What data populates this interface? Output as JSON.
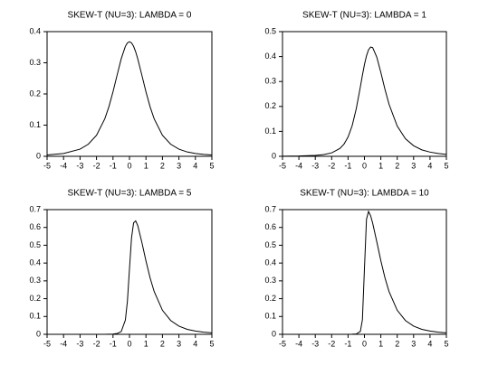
{
  "chart_data": [
    {
      "type": "line",
      "title": "SKEW-T (NU=3): LAMBDA = 0",
      "color": "#000000",
      "x": [
        -5,
        -4,
        -3,
        -2.5,
        -2,
        -1.5,
        -1.25,
        -1,
        -0.75,
        -0.5,
        -0.25,
        -0.125,
        0,
        0.125,
        0.25,
        0.375,
        0.5,
        0.75,
        1,
        1.25,
        1.5,
        2,
        2.5,
        3,
        3.5,
        4,
        4.5,
        5
      ],
      "values": [
        0.0042,
        0.0092,
        0.023,
        0.0387,
        0.0675,
        0.12,
        0.1589,
        0.2068,
        0.2607,
        0.3132,
        0.3528,
        0.3638,
        0.3676,
        0.3638,
        0.3528,
        0.3354,
        0.3132,
        0.2607,
        0.2068,
        0.1589,
        0.12,
        0.0675,
        0.0387,
        0.023,
        0.014,
        0.0092,
        0.0061,
        0.0042
      ],
      "xlim": [
        -5,
        5
      ],
      "xticks": [
        -5,
        -4,
        -3,
        -2,
        -1,
        0,
        1,
        2,
        3,
        4,
        5
      ],
      "ylim": [
        0,
        0.4
      ],
      "yticks": [
        0,
        0.1,
        0.2,
        0.3,
        0.4
      ]
    },
    {
      "type": "line",
      "title": "SKEW-T (NU=3): LAMBDA = 1",
      "color": "#000000",
      "x": [
        -5,
        -4,
        -3,
        -2.5,
        -2,
        -1.5,
        -1.25,
        -1,
        -0.75,
        -0.5,
        -0.25,
        -0.125,
        0,
        0.125,
        0.25,
        0.375,
        0.5,
        0.75,
        1,
        1.25,
        1.5,
        2,
        2.5,
        3,
        3.5,
        4,
        4.5,
        5
      ],
      "values": [
        0.0006,
        0.0013,
        0.0036,
        0.0068,
        0.0138,
        0.0313,
        0.0488,
        0.0773,
        0.1228,
        0.1906,
        0.2784,
        0.3247,
        0.3676,
        0.4029,
        0.4272,
        0.4381,
        0.4358,
        0.3986,
        0.3363,
        0.269,
        0.2087,
        0.1212,
        0.0706,
        0.0424,
        0.0259,
        0.017,
        0.0114,
        0.0079
      ],
      "xlim": [
        -5,
        5
      ],
      "xticks": [
        -5,
        -4,
        -3,
        -2,
        -1,
        0,
        1,
        2,
        3,
        4,
        5
      ],
      "ylim": [
        0,
        0.5
      ],
      "yticks": [
        0,
        0.1,
        0.2,
        0.3,
        0.4,
        0.5
      ]
    },
    {
      "type": "line",
      "title": "SKEW-T (NU=3): LAMBDA = 5",
      "color": "#000000",
      "x": [
        -5,
        -4,
        -3,
        -2.5,
        -2,
        -1.5,
        -1.25,
        -1,
        -0.75,
        -0.5,
        -0.25,
        -0.125,
        0,
        0.125,
        0.25,
        0.375,
        0.5,
        0.75,
        1,
        1.25,
        1.5,
        2,
        2.5,
        3,
        3.5,
        4,
        4.5,
        5
      ],
      "values": [
        0,
        0,
        0,
        0,
        0.0001,
        0.0003,
        0.0007,
        0.0015,
        0.0043,
        0.0157,
        0.0798,
        0.186,
        0.3676,
        0.5416,
        0.6258,
        0.6367,
        0.6107,
        0.5171,
        0.4121,
        0.3171,
        0.2397,
        0.1349,
        0.0774,
        0.046,
        0.028,
        0.0183,
        0.0122,
        0.0084
      ],
      "xlim": [
        -5,
        5
      ],
      "xticks": [
        -5,
        -4,
        -3,
        -2,
        -1,
        0,
        1,
        2,
        3,
        4,
        5
      ],
      "ylim": [
        0,
        0.7
      ],
      "yticks": [
        0,
        0.1,
        0.2,
        0.3,
        0.4,
        0.5,
        0.6,
        0.7
      ]
    },
    {
      "type": "line",
      "title": "SKEW-T (NU=3): LAMBDA = 10",
      "color": "#000000",
      "x": [
        -5,
        -4,
        -3,
        -2.5,
        -2,
        -1.5,
        -1.25,
        -1,
        -0.75,
        -0.5,
        -0.25,
        -0.125,
        0,
        0.125,
        0.25,
        0.375,
        0.5,
        0.75,
        1,
        1.25,
        1.5,
        2,
        2.5,
        3,
        3.5,
        4,
        4.5,
        5
      ],
      "values": [
        0,
        0,
        0,
        0,
        0,
        0,
        0,
        0.0001,
        0.0004,
        0.0016,
        0.0162,
        0.0812,
        0.3676,
        0.6464,
        0.6894,
        0.6663,
        0.6248,
        0.521,
        0.4135,
        0.3178,
        0.24,
        0.135,
        0.0774,
        0.046,
        0.028,
        0.0183,
        0.0122,
        0.0084
      ],
      "xlim": [
        -5,
        5
      ],
      "xticks": [
        -5,
        -4,
        -3,
        -2,
        -1,
        0,
        1,
        2,
        3,
        4,
        5
      ],
      "ylim": [
        0,
        0.7
      ],
      "yticks": [
        0,
        0.1,
        0.2,
        0.3,
        0.4,
        0.5,
        0.6,
        0.7
      ]
    }
  ]
}
